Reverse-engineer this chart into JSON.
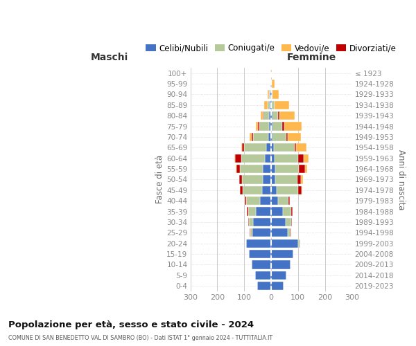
{
  "age_groups": [
    "0-4",
    "5-9",
    "10-14",
    "15-19",
    "20-24",
    "25-29",
    "30-34",
    "35-39",
    "40-44",
    "45-49",
    "50-54",
    "55-59",
    "60-64",
    "65-69",
    "70-74",
    "75-79",
    "80-84",
    "85-89",
    "90-94",
    "95-99",
    "100+"
  ],
  "birth_years": [
    "2019-2023",
    "2014-2018",
    "2009-2013",
    "2004-2008",
    "1999-2003",
    "1994-1998",
    "1989-1993",
    "1984-1988",
    "1979-1983",
    "1974-1978",
    "1969-1973",
    "1964-1968",
    "1959-1963",
    "1954-1958",
    "1949-1953",
    "1944-1948",
    "1939-1943",
    "1934-1938",
    "1929-1933",
    "1924-1928",
    "≤ 1923"
  ],
  "colors": {
    "celibi": "#4472C4",
    "coniugati": "#B5C99A",
    "vedovi": "#FFB84D",
    "divorziati": "#C00000"
  },
  "maschi": {
    "celibi": [
      52,
      60,
      73,
      82,
      92,
      70,
      66,
      56,
      42,
      34,
      30,
      32,
      22,
      18,
      10,
      8,
      7,
      5,
      4,
      2,
      2
    ],
    "coniugati": [
      0,
      0,
      0,
      0,
      2,
      8,
      16,
      28,
      52,
      73,
      78,
      84,
      88,
      82,
      56,
      36,
      22,
      8,
      3,
      0,
      0
    ],
    "vedovi": [
      0,
      0,
      0,
      0,
      0,
      0,
      0,
      0,
      0,
      0,
      0,
      1,
      2,
      4,
      7,
      8,
      9,
      12,
      6,
      1,
      0
    ],
    "divorziati": [
      0,
      0,
      0,
      0,
      0,
      2,
      4,
      6,
      3,
      8,
      10,
      14,
      24,
      8,
      7,
      6,
      2,
      0,
      0,
      0,
      0
    ]
  },
  "femmine": {
    "celibi": [
      46,
      56,
      72,
      82,
      100,
      62,
      54,
      44,
      26,
      20,
      16,
      16,
      12,
      10,
      6,
      5,
      4,
      3,
      3,
      2,
      1
    ],
    "coniugati": [
      0,
      0,
      0,
      0,
      8,
      10,
      20,
      30,
      38,
      80,
      82,
      88,
      88,
      78,
      50,
      36,
      22,
      9,
      3,
      0,
      0
    ],
    "vedovi": [
      0,
      0,
      0,
      0,
      0,
      0,
      0,
      0,
      0,
      2,
      6,
      8,
      16,
      38,
      50,
      64,
      55,
      55,
      22,
      10,
      2
    ],
    "divorziati": [
      0,
      0,
      0,
      0,
      0,
      2,
      4,
      6,
      6,
      14,
      14,
      22,
      22,
      6,
      6,
      8,
      6,
      0,
      0,
      0,
      0
    ]
  },
  "title": "Popolazione per età, sesso e stato civile - 2024",
  "subtitle": "COMUNE DI SAN BENEDETTO VAL DI SAMBRO (BO) - Dati ISTAT 1° gennaio 2024 - TUTTITALIA.IT",
  "xlabel_left": "Maschi",
  "xlabel_right": "Femmine",
  "ylabel_left": "Fasce di età",
  "ylabel_right": "Anni di nascita",
  "xlim": 300,
  "legend_labels": [
    "Celibi/Nubili",
    "Coniugati/e",
    "Vedovi/e",
    "Divorziati/e"
  ],
  "legend_colors": [
    "#4472C4",
    "#B5C99A",
    "#FFB84D",
    "#C00000"
  ],
  "bg_color": "#ffffff",
  "grid_color": "#cccccc",
  "tick_color": "#888888"
}
